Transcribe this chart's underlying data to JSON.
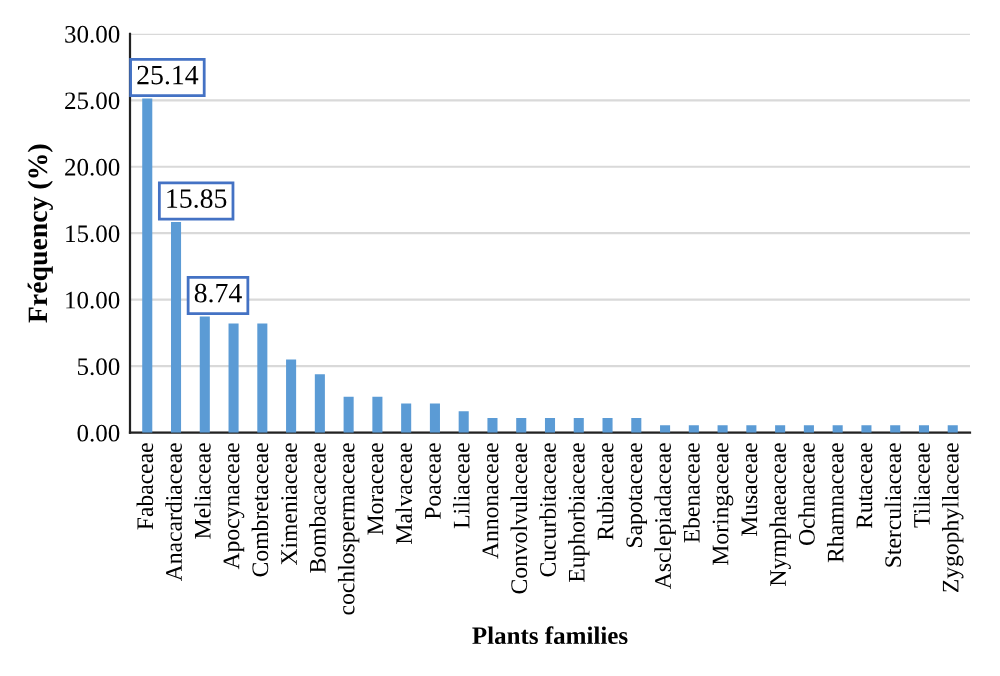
{
  "chart_data": {
    "type": "bar",
    "xlabel": "Plants families",
    "ylabel": "Fréquency (%)",
    "categories": [
      "Fabaceae",
      "Anacardiaceae",
      "Meliaceae",
      "Apocynaceae",
      "Combretaceae",
      "Ximeniaceae",
      "Bombacaceae",
      "cochlospermaceae",
      "Moraceae",
      "Malvaceae",
      "Poaceae",
      "Liliaceae",
      "Annonaceae",
      "Convolvulaceae",
      "Cucurbitaceae",
      "Euphorbiaceae",
      "Rubiaceae",
      "Sapotaceae",
      "Asclepiadaceae",
      "Ebenaceae",
      "Moringaceae",
      "Musaceae",
      "Nymphaeaceae",
      "Ochnaceae",
      "Rhamnaceae",
      "Rutaceae",
      "Sterculiaceae",
      "Tiliaceae",
      "Zygophyllaceae"
    ],
    "values": [
      25.14,
      15.85,
      8.74,
      8.2,
      8.2,
      5.5,
      4.4,
      2.7,
      2.7,
      2.2,
      2.2,
      1.6,
      1.1,
      1.1,
      1.1,
      1.1,
      1.1,
      1.1,
      0.55,
      0.55,
      0.55,
      0.55,
      0.55,
      0.55,
      0.55,
      0.55,
      0.55,
      0.55,
      0.55
    ],
    "value_labels": [
      "25.14",
      "15.85",
      "8.74",
      null,
      null,
      null,
      null,
      null,
      null,
      null,
      null,
      null,
      null,
      null,
      null,
      null,
      null,
      null,
      null,
      null,
      null,
      null,
      null,
      null,
      null,
      null,
      null,
      null,
      null
    ],
    "color": "#5b9bd5",
    "ylim": [
      0,
      30
    ],
    "yticks": [
      {
        "value": 0,
        "label": "0.00"
      },
      {
        "value": 5,
        "label": "5.00"
      },
      {
        "value": 10,
        "label": "10.00"
      },
      {
        "value": 15,
        "label": "15.00"
      },
      {
        "value": 20,
        "label": "20.00"
      },
      {
        "value": 25,
        "label": "25.00"
      },
      {
        "value": 30,
        "label": "30.00"
      }
    ],
    "grid": "y"
  }
}
